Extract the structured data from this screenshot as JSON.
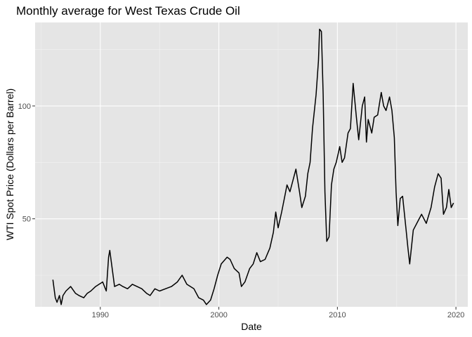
{
  "chart_data": {
    "type": "line",
    "title": "Monthly average for West Texas Crude Oil",
    "xlabel": "Date",
    "ylabel": "WTI Spot Price (Dollars per Barrel)",
    "xlim": [
      1984.5,
      2021.0
    ],
    "ylim": [
      11,
      137
    ],
    "x_ticks": [
      1990,
      2000,
      2010,
      2020
    ],
    "y_ticks": [
      50,
      100
    ],
    "grid": true,
    "legend": "none",
    "colors": {
      "panel_bg": "#e5e5e5",
      "grid_major": "#ffffff",
      "grid_minor": "#f2f2f2",
      "line": "#000000",
      "tick": "#333333"
    },
    "series": [
      {
        "x": [
          1986.0,
          1986.2,
          1986.35,
          1986.55,
          1986.7,
          1986.85,
          1987.1,
          1987.5,
          1987.9,
          1988.2,
          1988.6,
          1988.9,
          1989.2,
          1989.6,
          1989.9,
          1990.2,
          1990.5,
          1990.7,
          1990.8,
          1991.0,
          1991.2,
          1991.6,
          1991.9,
          1992.3,
          1992.7,
          1993.1,
          1993.5,
          1993.9,
          1994.2,
          1994.6,
          1995.0,
          1995.5,
          1996.0,
          1996.5,
          1996.9,
          1997.3,
          1997.9,
          1998.3,
          1998.7,
          1998.95,
          1999.3,
          1999.6,
          1999.9,
          2000.2,
          2000.7,
          2000.95,
          2001.3,
          2001.7,
          2001.9,
          2002.2,
          2002.6,
          2002.9,
          2003.2,
          2003.5,
          2003.9,
          2004.3,
          2004.6,
          2004.8,
          2005.0,
          2005.3,
          2005.6,
          2005.75,
          2006.0,
          2006.5,
          2006.8,
          2007.0,
          2007.3,
          2007.5,
          2007.7,
          2007.9,
          2008.0,
          2008.2,
          2008.4,
          2008.5,
          2008.65,
          2008.8,
          2008.95,
          2009.1,
          2009.3,
          2009.5,
          2009.7,
          2009.9,
          2010.2,
          2010.4,
          2010.6,
          2010.9,
          2011.1,
          2011.33,
          2011.6,
          2011.8,
          2012.1,
          2012.3,
          2012.45,
          2012.6,
          2012.9,
          2013.1,
          2013.4,
          2013.7,
          2013.9,
          2014.1,
          2014.4,
          2014.6,
          2014.8,
          2014.95,
          2015.1,
          2015.3,
          2015.5,
          2015.8,
          2015.95,
          2016.1,
          2016.4,
          2016.7,
          2016.9,
          2017.1,
          2017.5,
          2017.9,
          2018.2,
          2018.5,
          2018.75,
          2018.95,
          2019.2,
          2019.4,
          2019.6,
          2019.8
        ],
        "y": [
          23,
          15,
          13,
          16,
          12,
          16,
          18,
          20,
          17,
          16,
          15,
          17,
          18,
          20,
          21,
          22,
          18,
          33,
          36,
          28,
          20,
          21,
          20,
          19,
          21,
          20,
          19,
          17,
          16,
          19,
          18,
          19,
          20,
          22,
          25,
          21,
          19,
          15,
          14,
          12,
          14,
          19,
          25,
          30,
          33,
          32,
          28,
          26,
          20,
          22,
          28,
          30,
          35,
          31,
          32,
          37,
          44,
          53,
          46,
          53,
          61,
          65,
          62,
          72,
          62,
          55,
          60,
          70,
          75,
          90,
          95,
          105,
          120,
          134,
          133,
          105,
          62,
          40,
          42,
          65,
          72,
          75,
          82,
          75,
          77,
          88,
          90,
          110,
          95,
          85,
          100,
          104,
          84,
          94,
          88,
          95,
          96,
          106,
          100,
          98,
          104,
          98,
          86,
          62,
          47,
          59,
          60,
          45,
          37,
          30,
          45,
          48,
          50,
          52,
          48,
          55,
          64,
          70,
          68,
          52,
          55,
          63,
          55,
          57
        ]
      }
    ]
  }
}
